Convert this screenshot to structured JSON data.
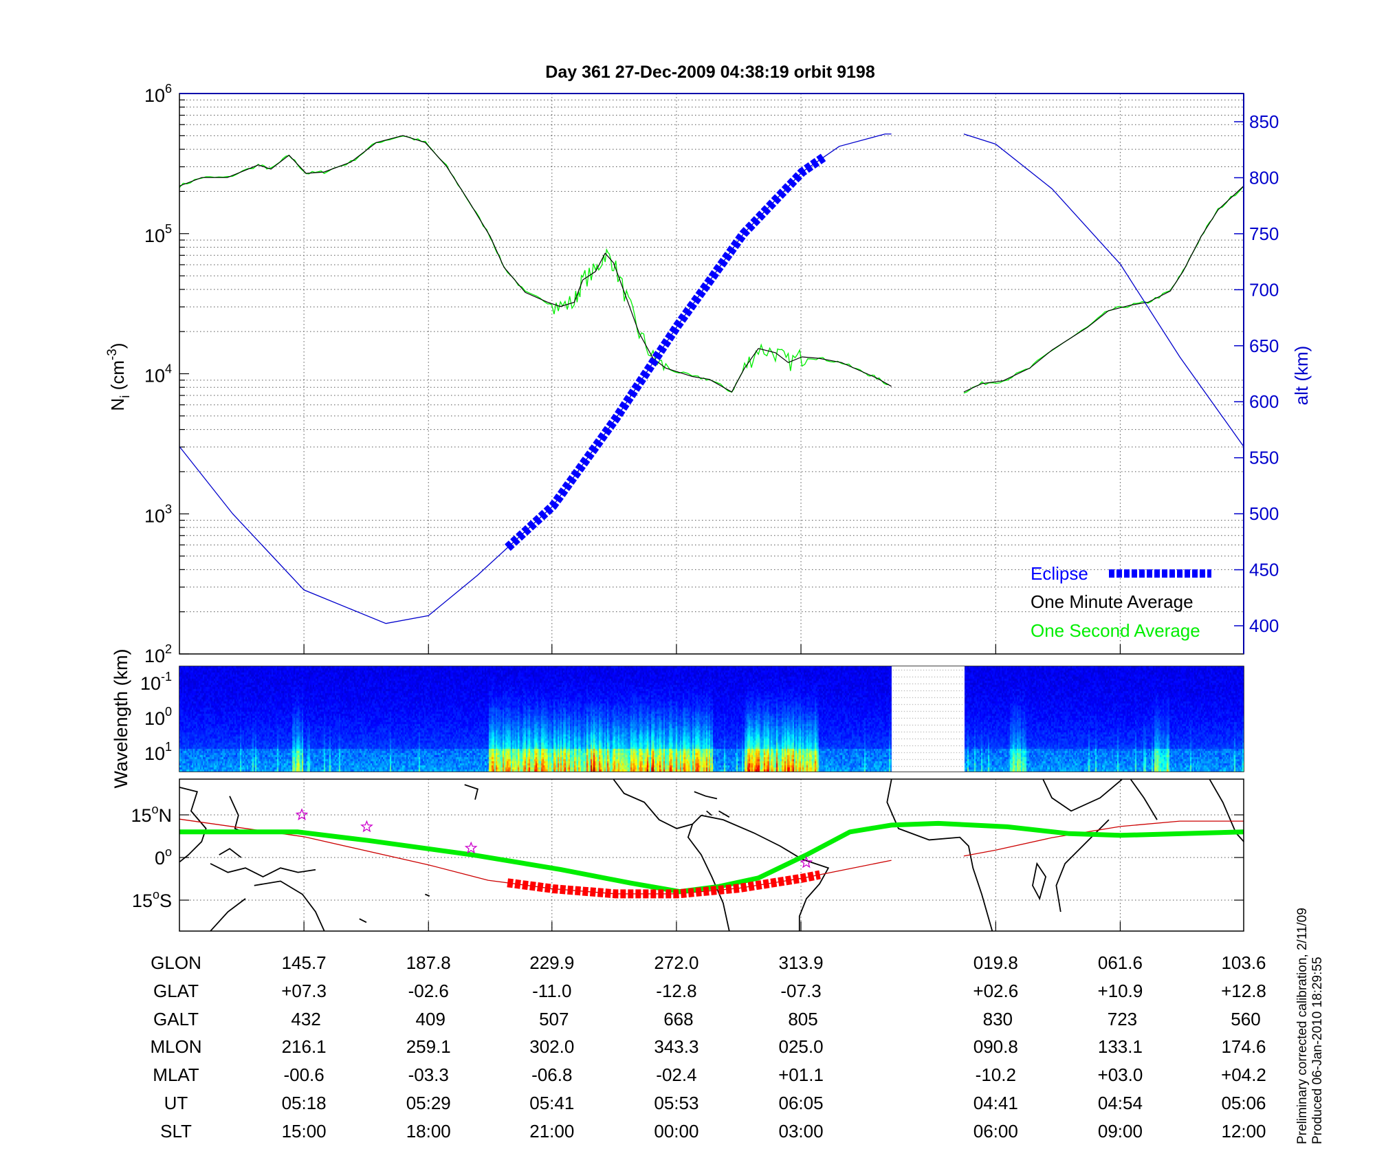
{
  "title": "Day 361  27-Dec-2009 04:38:19   orbit 9198",
  "colors": {
    "density_minute": "#000000",
    "density_second": "#00ee00",
    "altitude": "#0000cc",
    "eclipse": "#0000ff",
    "track": "#cc0000",
    "track_eclipse": "#ff0000",
    "mag_equator": "#00ee00",
    "star": "#cc00cc"
  },
  "footnote": {
    "line1": "Preliminary corrected calibration, 2/11/09",
    "line2": "Produced 06-Jan-2010 18:29:55"
  },
  "chart_data": [
    {
      "type": "line",
      "name": "ion-density-altitude",
      "x_units": "minutes from left edge of orbit plot",
      "xlim": [
        0,
        100
      ],
      "gap": [
        66.9,
        73.7
      ],
      "y_left": {
        "label_main": "N",
        "label_sub": "i",
        "label_unit_open": " (cm",
        "label_sup": "-3",
        "label_close": ")",
        "scale": "log",
        "ylim_log10": [
          2,
          6
        ],
        "ticks": [
          {
            "base": "10",
            "exp": "6",
            "v": 6
          },
          {
            "base": "10",
            "exp": "5",
            "v": 5
          },
          {
            "base": "10",
            "exp": "4",
            "v": 4
          },
          {
            "base": "10",
            "exp": "3",
            "v": 3
          },
          {
            "base": "10",
            "exp": "2",
            "v": 2
          }
        ]
      },
      "y_right": {
        "label": "alt (km)",
        "ylim": [
          375,
          875
        ],
        "ticks": [
          "400",
          "450",
          "500",
          "550",
          "600",
          "650",
          "700",
          "750",
          "800",
          "850"
        ]
      },
      "grid": true,
      "legend": {
        "placement": "bottom-right",
        "items": [
          {
            "label": "Eclipse",
            "kind": "eclipse"
          },
          {
            "label": "One Minute Average",
            "kind": "minute"
          },
          {
            "label": "One Second Average",
            "kind": "second"
          }
        ]
      },
      "series": [
        {
          "name": "One Minute Average",
          "log10_density": [
            [
              0,
              5.34
            ],
            [
              2.1,
              5.4
            ],
            [
              4.5,
              5.4
            ],
            [
              7.4,
              5.49
            ],
            [
              8.6,
              5.46
            ],
            [
              10.3,
              5.56
            ],
            [
              11.9,
              5.43
            ],
            [
              13.6,
              5.44
            ],
            [
              16.1,
              5.51
            ],
            [
              18.5,
              5.65
            ],
            [
              21.0,
              5.7
            ],
            [
              23.1,
              5.65
            ],
            [
              25.1,
              5.48
            ],
            [
              27.2,
              5.23
            ],
            [
              29.2,
              4.98
            ],
            [
              30.5,
              4.76
            ],
            [
              32.5,
              4.58
            ],
            [
              34.6,
              4.51
            ],
            [
              35.8,
              4.48
            ],
            [
              37.1,
              4.51
            ],
            [
              37.9,
              4.67
            ],
            [
              39.1,
              4.73
            ],
            [
              40.0,
              4.86
            ],
            [
              40.8,
              4.79
            ],
            [
              42.0,
              4.54
            ],
            [
              43.2,
              4.29
            ],
            [
              44.5,
              4.11
            ],
            [
              45.7,
              4.04
            ],
            [
              48.2,
              3.98
            ],
            [
              49.8,
              3.96
            ],
            [
              51.9,
              3.87
            ],
            [
              53.1,
              4.04
            ],
            [
              54.4,
              4.18
            ],
            [
              56.0,
              4.15
            ],
            [
              57.2,
              4.08
            ],
            [
              58.5,
              4.12
            ],
            [
              60.1,
              4.11
            ],
            [
              62.2,
              4.08
            ],
            [
              64.3,
              4.01
            ],
            [
              65.5,
              3.97
            ],
            [
              66.9,
              3.91
            ],
            null,
            [
              73.7,
              3.87
            ],
            [
              75.4,
              3.93
            ],
            [
              77.4,
              3.95
            ],
            [
              79.9,
              4.04
            ],
            [
              82.0,
              4.17
            ],
            [
              85.3,
              4.33
            ],
            [
              87.3,
              4.45
            ],
            [
              89.4,
              4.49
            ],
            [
              91.0,
              4.51
            ],
            [
              93.1,
              4.59
            ],
            [
              94.3,
              4.73
            ],
            [
              96.0,
              4.98
            ],
            [
              97.6,
              5.17
            ],
            [
              100,
              5.34
            ]
          ]
        },
        {
          "name": "Altitude",
          "alt_km": [
            [
              0,
              560
            ],
            [
              5,
              500
            ],
            [
              11.7,
              432
            ],
            [
              19.4,
              402
            ],
            [
              23.4,
              409
            ],
            [
              28,
              445
            ],
            [
              35.1,
              507
            ],
            [
              41,
              585
            ],
            [
              46.8,
              668
            ],
            [
              53,
              750
            ],
            [
              58.5,
              805
            ],
            [
              62,
              828
            ],
            [
              66.3,
              839
            ],
            [
              66.9,
              839
            ],
            null,
            [
              73.7,
              839
            ],
            [
              76.7,
              830
            ],
            [
              82,
              790
            ],
            [
              88.4,
              723
            ],
            [
              94,
              640
            ],
            [
              100,
              560
            ]
          ]
        },
        {
          "name": "Eclipse",
          "t_range": [
            30.7,
            60.7
          ]
        }
      ]
    },
    {
      "type": "heatmap",
      "name": "wavelength-spectrogram",
      "ylabel": "Wavelength (km)",
      "ticks": [
        {
          "base": "10",
          "exp": "-1"
        },
        {
          "base": "10",
          "exp": "0"
        },
        {
          "base": "10",
          "exp": "1"
        }
      ],
      "gap": [
        66.9,
        73.7
      ],
      "active_bands": [
        [
          29,
          50,
          0.9
        ],
        [
          53,
          60,
          1.0
        ],
        [
          10.5,
          11.5,
          0.6
        ],
        [
          78,
          79.5,
          0.5
        ],
        [
          91.5,
          93,
          0.5
        ]
      ]
    },
    {
      "type": "line",
      "name": "ground-track-map",
      "ylim": [
        -26,
        28
      ],
      "yticks": [
        {
          "deg": "15",
          "unit": "N",
          "v": 15
        },
        {
          "deg": "0",
          "unit": "",
          "v": 0
        },
        {
          "deg": "15",
          "unit": "S",
          "v": -15
        }
      ],
      "track_lat": [
        [
          0,
          13.5
        ],
        [
          11.7,
          7.3
        ],
        [
          23.4,
          -2.6
        ],
        [
          29,
          -8
        ],
        [
          35.1,
          -11
        ],
        [
          41,
          -12.8
        ],
        [
          46.8,
          -12.8
        ],
        [
          52.6,
          -10.8
        ],
        [
          58.5,
          -7.3
        ],
        [
          66.9,
          -1
        ],
        null,
        [
          73.7,
          0.5
        ],
        [
          76.7,
          2.6
        ],
        [
          82,
          7
        ],
        [
          88.4,
          10.9
        ],
        [
          94,
          12.8
        ],
        [
          100,
          12.8
        ]
      ],
      "mag_equator_lat": [
        [
          0,
          9
        ],
        [
          11.1,
          9
        ],
        [
          17.7,
          6
        ],
        [
          27.6,
          0.9
        ],
        [
          35.8,
          -4.2
        ],
        [
          42.4,
          -9
        ],
        [
          47,
          -12
        ],
        [
          50.7,
          -10.2
        ],
        [
          54.4,
          -7.2
        ],
        [
          58.9,
          0.9
        ],
        [
          63,
          9
        ],
        [
          66.9,
          11.4
        ],
        [
          71.3,
          12
        ],
        [
          77.8,
          10.8
        ],
        [
          83.6,
          8.4
        ],
        [
          88.4,
          7.8
        ],
        [
          94.3,
          8.4
        ],
        [
          100,
          9
        ]
      ],
      "eclipse_t_range": [
        30.7,
        61
      ],
      "stars": [
        [
          11.5,
          15
        ],
        [
          17.6,
          10.8
        ],
        [
          27.4,
          3.3
        ],
        [
          58.9,
          -1.8
        ]
      ]
    }
  ],
  "table": {
    "row_labels": [
      "GLON",
      "GLAT",
      "GALT",
      "MLON",
      "MLAT",
      "UT",
      "SLT"
    ],
    "columns": [
      {
        "t": 11.7,
        "values": [
          "145.7",
          "+07.3",
          "432",
          "216.1",
          "-00.6",
          "05:18",
          "15:00"
        ]
      },
      {
        "t": 23.4,
        "values": [
          "187.8",
          "-02.6",
          "409",
          "259.1",
          "-03.3",
          "05:29",
          "18:00"
        ]
      },
      {
        "t": 35.0,
        "values": [
          "229.9",
          "-11.0",
          "507",
          "302.0",
          "-06.8",
          "05:41",
          "21:00"
        ]
      },
      {
        "t": 46.7,
        "values": [
          "272.0",
          "-12.8",
          "668",
          "343.3",
          "-02.4",
          "05:53",
          "00:00"
        ]
      },
      {
        "t": 58.4,
        "values": [
          "313.9",
          "-07.3",
          "805",
          "025.0",
          "+01.1",
          "06:05",
          "03:00"
        ]
      },
      {
        "t": 76.7,
        "values": [
          "019.8",
          "+02.6",
          "830",
          "090.8",
          "-10.2",
          "04:41",
          "06:00"
        ]
      },
      {
        "t": 88.4,
        "values": [
          "061.6",
          "+10.9",
          "723",
          "133.1",
          "+03.0",
          "04:54",
          "09:00"
        ]
      },
      {
        "t": 100,
        "values": [
          "103.6",
          "+12.8",
          "560",
          "174.6",
          "+04.2",
          "05:06",
          "12:00"
        ]
      }
    ]
  }
}
